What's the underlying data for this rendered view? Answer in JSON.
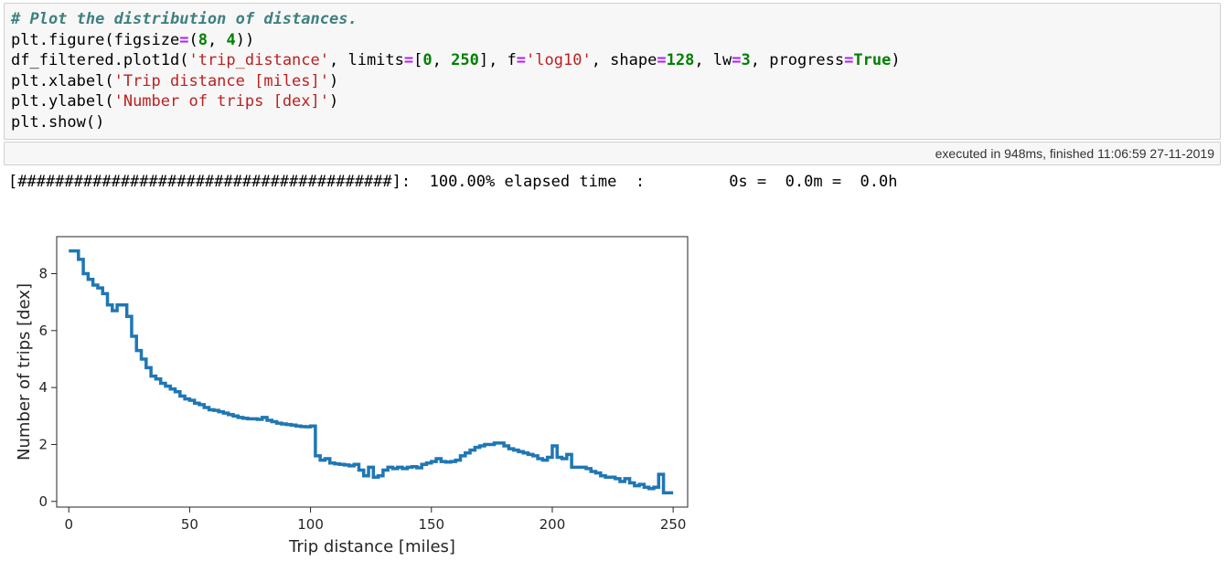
{
  "code_cell": {
    "lines": [
      [
        {
          "t": "# Plot the distribution of distances.",
          "c": "cm"
        }
      ],
      [
        {
          "t": "plt.figure(figsize",
          "c": ""
        },
        {
          "t": "=",
          "c": "op"
        },
        {
          "t": "(",
          "c": ""
        },
        {
          "t": "8",
          "c": "nm"
        },
        {
          "t": ", ",
          "c": ""
        },
        {
          "t": "4",
          "c": "nm"
        },
        {
          "t": "))",
          "c": ""
        }
      ],
      [
        {
          "t": "df_filtered.plot1d(",
          "c": ""
        },
        {
          "t": "'trip_distance'",
          "c": "st"
        },
        {
          "t": ", limits",
          "c": ""
        },
        {
          "t": "=",
          "c": "op"
        },
        {
          "t": "[",
          "c": ""
        },
        {
          "t": "0",
          "c": "nm"
        },
        {
          "t": ", ",
          "c": ""
        },
        {
          "t": "250",
          "c": "nm"
        },
        {
          "t": "], f",
          "c": ""
        },
        {
          "t": "=",
          "c": "op"
        },
        {
          "t": "'log10'",
          "c": "st"
        },
        {
          "t": ", shape",
          "c": ""
        },
        {
          "t": "=",
          "c": "op"
        },
        {
          "t": "128",
          "c": "nm"
        },
        {
          "t": ", lw",
          "c": ""
        },
        {
          "t": "=",
          "c": "op"
        },
        {
          "t": "3",
          "c": "nm"
        },
        {
          "t": ", progress",
          "c": ""
        },
        {
          "t": "=",
          "c": "op"
        },
        {
          "t": "True",
          "c": "kw"
        },
        {
          "t": ")",
          "c": ""
        }
      ],
      [
        {
          "t": "plt.xlabel(",
          "c": ""
        },
        {
          "t": "'Trip distance [miles]'",
          "c": "st"
        },
        {
          "t": ")",
          "c": ""
        }
      ],
      [
        {
          "t": "plt.ylabel(",
          "c": ""
        },
        {
          "t": "'Number of trips [dex]'",
          "c": "st"
        },
        {
          "t": ")",
          "c": ""
        }
      ],
      [
        {
          "t": "plt.show()",
          "c": ""
        }
      ]
    ]
  },
  "exec_status": {
    "text": "executed in 948ms, finished 11:06:59 27-11-2019"
  },
  "progress_output": {
    "bar": "[########################################]:",
    "percent": "100.00%",
    "label": "elapsed time",
    "sep": ":",
    "seconds": "0s",
    "minutes": "0.0m",
    "hours": "0.0h"
  },
  "colors": {
    "line": "#1f77b4",
    "comment": "#408080",
    "string": "#ba2121",
    "number": "#008000",
    "operator": "#aa22ff"
  },
  "chart_data": {
    "type": "line",
    "drawstyle": "steps",
    "xlabel": "Trip distance [miles]",
    "ylabel": "Number of trips [dex]",
    "xlim": [
      -5,
      256
    ],
    "ylim": [
      -0.2,
      9.3
    ],
    "xticks": [
      0,
      50,
      100,
      150,
      200,
      250
    ],
    "yticks": [
      0,
      2,
      4,
      6,
      8
    ],
    "grid": false,
    "series": [
      {
        "x": [
          0,
          2,
          4,
          6,
          8,
          10,
          12,
          14,
          16,
          18,
          20,
          22,
          24,
          26,
          28,
          30,
          32,
          34,
          36,
          38,
          40,
          42,
          44,
          46,
          48,
          50,
          52,
          54,
          56,
          58,
          60,
          62,
          64,
          66,
          68,
          70,
          72,
          74,
          76,
          78,
          80,
          82,
          84,
          86,
          88,
          90,
          92,
          94,
          96,
          98,
          100,
          102,
          104,
          106,
          108,
          110,
          112,
          114,
          116,
          118,
          120,
          122,
          124,
          126,
          128,
          130,
          132,
          134,
          136,
          138,
          140,
          142,
          144,
          146,
          148,
          150,
          152,
          154,
          156,
          158,
          160,
          162,
          164,
          166,
          168,
          170,
          172,
          174,
          176,
          178,
          180,
          182,
          184,
          186,
          188,
          190,
          192,
          194,
          196,
          198,
          200,
          202,
          204,
          206,
          208,
          210,
          212,
          214,
          216,
          218,
          220,
          222,
          224,
          226,
          228,
          230,
          232,
          234,
          236,
          238,
          240,
          242,
          244,
          246,
          248,
          250
        ],
        "y": [
          8.8,
          8.8,
          8.5,
          8.0,
          7.8,
          7.6,
          7.5,
          7.3,
          6.9,
          6.7,
          6.9,
          6.9,
          6.5,
          5.8,
          5.3,
          5.0,
          4.7,
          4.4,
          4.3,
          4.15,
          4.05,
          3.95,
          3.85,
          3.7,
          3.6,
          3.55,
          3.45,
          3.4,
          3.3,
          3.22,
          3.2,
          3.15,
          3.1,
          3.05,
          3.0,
          2.95,
          2.92,
          2.9,
          2.9,
          2.88,
          2.95,
          2.85,
          2.8,
          2.75,
          2.72,
          2.7,
          2.68,
          2.65,
          2.63,
          2.62,
          2.65,
          1.6,
          1.45,
          1.5,
          1.35,
          1.32,
          1.3,
          1.28,
          1.25,
          1.3,
          1.1,
          0.9,
          1.2,
          0.85,
          0.9,
          1.1,
          1.2,
          1.15,
          1.2,
          1.15,
          1.2,
          1.22,
          1.18,
          1.3,
          1.35,
          1.4,
          1.5,
          1.4,
          1.38,
          1.4,
          1.45,
          1.6,
          1.7,
          1.8,
          1.9,
          1.95,
          2.0,
          2.0,
          2.05,
          2.05,
          1.95,
          1.85,
          1.8,
          1.75,
          1.7,
          1.65,
          1.6,
          1.5,
          1.45,
          1.55,
          1.95,
          1.55,
          1.5,
          1.65,
          1.2,
          1.2,
          1.2,
          1.15,
          1.05,
          1.0,
          0.9,
          0.85,
          0.85,
          0.8,
          0.7,
          0.8,
          0.65,
          0.55,
          0.6,
          0.5,
          0.45,
          0.5,
          0.95,
          0.3,
          0.3,
          0.3
        ]
      }
    ]
  }
}
